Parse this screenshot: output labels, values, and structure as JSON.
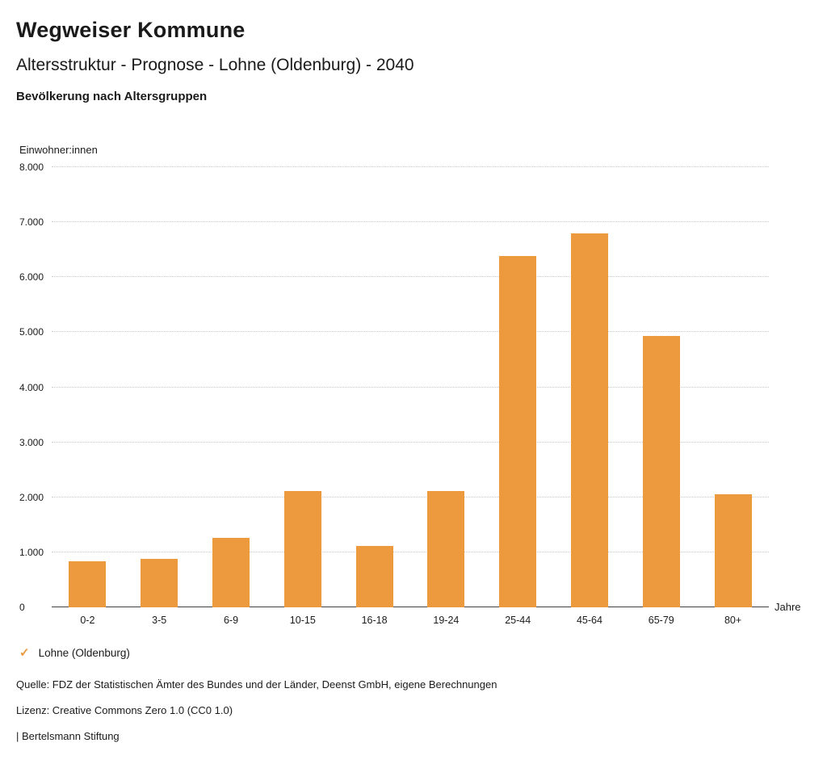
{
  "header": {
    "title": "Wegweiser Kommune",
    "subtitle": "Altersstruktur - Prognose - Lohne (Oldenburg) - 2040",
    "section_title": "Bevölkerung nach Altersgruppen"
  },
  "chart_data": {
    "type": "bar",
    "title": "Bevölkerung nach Altersgruppen",
    "xlabel": "Jahre",
    "ylabel": "Einwohner:innen",
    "ylim": [
      0,
      8000
    ],
    "grid": true,
    "gridline_style": "dotted",
    "bar_color": "#EC9A3D",
    "categories": [
      "0-2",
      "3-5",
      "6-9",
      "10-15",
      "16-18",
      "19-24",
      "25-44",
      "45-64",
      "65-79",
      "80+"
    ],
    "series": [
      {
        "name": "Lohne (Oldenburg)",
        "values": [
          830,
          880,
          1260,
          2120,
          1120,
          2120,
          6380,
          6800,
          4930,
          2060
        ]
      }
    ],
    "yticks": [
      {
        "label": "0",
        "value": 0
      },
      {
        "label": "1.000",
        "value": 1000
      },
      {
        "label": "2.000",
        "value": 2000
      },
      {
        "label": "3.000",
        "value": 3000
      },
      {
        "label": "4.000",
        "value": 4000
      },
      {
        "label": "5.000",
        "value": 5000
      },
      {
        "label": "6.000",
        "value": 6000
      },
      {
        "label": "7.000",
        "value": 7000
      },
      {
        "label": "8.000",
        "value": 8000
      }
    ],
    "legend_position": "bottom-left"
  },
  "legend": {
    "items": [
      {
        "label": "Lohne (Oldenburg)",
        "icon": "check-icon",
        "glyph": "✓",
        "color": "#EC9A3D"
      }
    ]
  },
  "footer": {
    "source": "Quelle: FDZ der Statistischen Ämter des Bundes und der Länder, Deenst GmbH, eigene Berechnungen",
    "license": "Lizenz: Creative Commons Zero 1.0 (CC0 1.0)",
    "attribution": "| Bertelsmann Stiftung"
  }
}
